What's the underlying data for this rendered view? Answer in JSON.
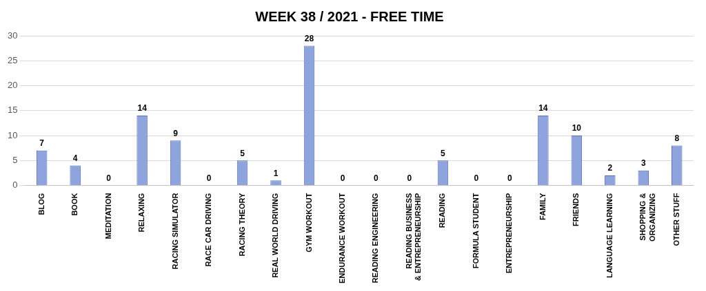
{
  "chart_data": {
    "type": "bar",
    "title": "WEEK 38 / 2021 - FREE TIME",
    "categories": [
      "BLOG",
      "BOOK",
      "MEDITATION",
      "RELAXING",
      "RACING SIMULATOR",
      "RACE CAR DRIVING",
      "RACING THEORY",
      "REAL WORLD DRIVING",
      "GYM WORKOUT",
      "ENDURANCE WORKOUT",
      "READING ENGINEERING",
      "READING BUSINESS & ENTREPRENEURSHIP",
      "READING",
      "FORMULA STUDENT",
      "ENTREPRENEURSHIP",
      "FAMILY",
      "FRIENDS",
      "LANGUAGE LEARNING",
      "SHOPPING & ORGANIZING",
      "OTHER STUFF"
    ],
    "values": [
      7,
      4,
      0,
      14,
      9,
      0,
      5,
      1,
      28,
      0,
      0,
      0,
      5,
      0,
      0,
      14,
      10,
      2,
      3,
      8
    ],
    "color": "#8fa3dc",
    "ylim": [
      0,
      30
    ],
    "yticks": [
      0,
      5,
      10,
      15,
      20,
      25,
      30
    ],
    "grid": "y",
    "data_labels": true,
    "legend": false
  }
}
